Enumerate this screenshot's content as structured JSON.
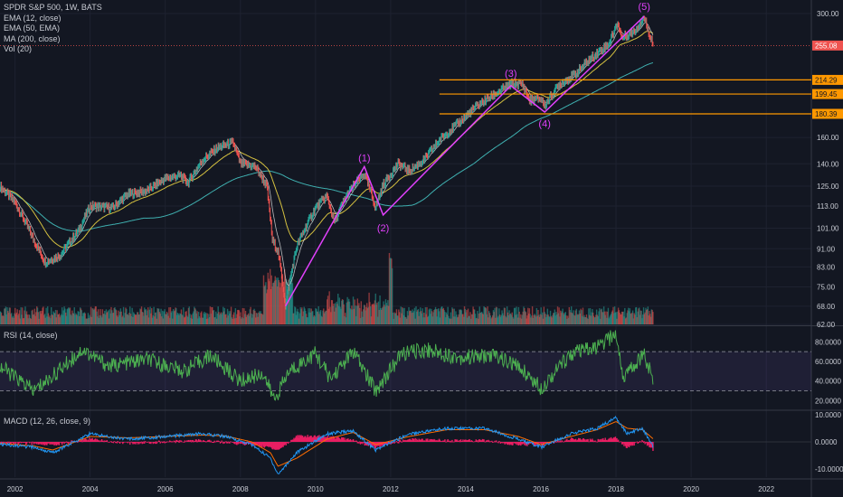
{
  "legend": {
    "title": "SPDR S&P 500, 1W, BATS",
    "ema12": "EMA (12, close)",
    "ema50": "EMA (50, EMA)",
    "ma200": "MA (200, close)",
    "vol": "Vol (20)"
  },
  "rsi_label": "RSI (14, close)",
  "macd_label": "MACD (12, 26, close, 9)",
  "colors": {
    "background": "#131722",
    "grid": "#1e2230",
    "candle_up": "#26a69a",
    "candle_down": "#ef5350",
    "ema12": "#e3e3e3",
    "ema50": "#d4c040",
    "ma200": "#3fb0b0",
    "wave": "#e040fb",
    "rsi": "#4caf50",
    "level": "#ff9800",
    "price_tag": "#ef5350",
    "macd_line": "#2196f3",
    "signal_line": "#ff6d00",
    "histogram": "#e91e63"
  },
  "chart_data": {
    "type": "line",
    "title": "SPDR S&P 500, 1W, BATS",
    "price_axis_ticks": [
      "300.00",
      "68.00",
      "75.00",
      "83.00",
      "91.00",
      "101.00",
      "113.00",
      "125.00",
      "140.00",
      "160.00",
      "62.00"
    ],
    "price_scale": "log",
    "ylim": [
      62,
      300
    ],
    "x_ticks": [
      "2002",
      "2004",
      "2006",
      "2008",
      "2010",
      "2012",
      "2014",
      "2016",
      "2018",
      "2020",
      "2022"
    ],
    "xlim": [
      2001.6,
      2023.2
    ],
    "series": [
      {
        "name": "SPDR S&P 500",
        "x": [
          2001.6,
          2002.0,
          2002.5,
          2002.8,
          2003.2,
          2003.7,
          2004.0,
          2004.6,
          2005.0,
          2005.5,
          2006.0,
          2006.4,
          2006.6,
          2007.0,
          2007.4,
          2007.8,
          2008.0,
          2008.4,
          2008.7,
          2008.85,
          2009.0,
          2009.2,
          2009.5,
          2010.0,
          2010.3,
          2010.5,
          2010.8,
          2011.0,
          2011.3,
          2011.6,
          2011.8,
          2012.2,
          2012.5,
          2012.9,
          2013.3,
          2013.8,
          2014.3,
          2014.8,
          2015.2,
          2015.5,
          2015.7,
          2016.0,
          2016.1,
          2016.5,
          2016.9,
          2017.3,
          2017.8,
          2018.05,
          2018.15,
          2018.5,
          2018.75,
          2018.85,
          2019.0
        ],
        "values": [
          125,
          115,
          95,
          85,
          88,
          100,
          113,
          112,
          120,
          122,
          130,
          132,
          127,
          143,
          152,
          156,
          140,
          138,
          125,
          95,
          90,
          68,
          92,
          112,
          119,
          104,
          118,
          125,
          133,
          112,
          126,
          140,
          135,
          143,
          158,
          172,
          188,
          200,
          210,
          210,
          193,
          195,
          188,
          210,
          220,
          238,
          257,
          286,
          265,
          275,
          294,
          276,
          255
        ]
      }
    ],
    "price_tags": [
      {
        "label": "255.08",
        "value": 255.08
      },
      {
        "label": "214.29",
        "value": 214.29
      },
      {
        "label": "199.45",
        "value": 199.45
      },
      {
        "label": "180.39",
        "value": 180.39
      }
    ],
    "level_lines": [
      214.29,
      199.45,
      180.39
    ],
    "wave_labels": [
      {
        "text": "(1)",
        "x": 2011.3,
        "y": 138
      },
      {
        "text": "(2)",
        "x": 2011.8,
        "y": 106
      },
      {
        "text": "(3)",
        "x": 2015.2,
        "y": 212
      },
      {
        "text": "(4)",
        "x": 2016.1,
        "y": 180
      },
      {
        "text": "(5)",
        "x": 2018.75,
        "y": 297
      }
    ],
    "wave_path": {
      "x": [
        2009.2,
        2011.3,
        2011.8,
        2015.2,
        2016.1,
        2018.75
      ],
      "y": [
        68,
        138,
        108,
        208,
        182,
        296
      ]
    },
    "rsi": {
      "ticks": [
        "80.0000",
        "60.0000",
        "40.0000",
        "20.0000"
      ],
      "ylim": [
        12,
        95
      ],
      "upper_band": 70,
      "lower_band": 30,
      "x": [
        2001.6,
        2002.5,
        2003.0,
        2003.8,
        2004.5,
        2005.5,
        2006.5,
        2007.2,
        2008.0,
        2008.6,
        2008.9,
        2009.3,
        2010.0,
        2010.4,
        2011.0,
        2011.6,
        2012.3,
        2013.0,
        2013.8,
        2014.8,
        2015.5,
        2016.0,
        2016.8,
        2017.5,
        2018.0,
        2018.2,
        2018.6,
        2018.75,
        2019.0
      ],
      "values": [
        55,
        30,
        45,
        72,
        55,
        62,
        50,
        66,
        40,
        48,
        21,
        50,
        68,
        42,
        70,
        30,
        68,
        72,
        64,
        66,
        52,
        33,
        68,
        74,
        88,
        43,
        62,
        68,
        38
      ]
    },
    "macd": {
      "ticks": [
        "10.0000",
        "0.0000",
        "-10.0000"
      ],
      "ylim": [
        -13,
        11
      ],
      "x": [
        2001.6,
        2002.5,
        2003.0,
        2004.0,
        2005.0,
        2006.0,
        2007.0,
        2007.6,
        2008.3,
        2008.8,
        2009.0,
        2009.5,
        2010.3,
        2011.0,
        2011.6,
        2012.5,
        2013.5,
        2014.5,
        2015.4,
        2016.0,
        2016.8,
        2017.5,
        2018.0,
        2018.3,
        2018.7,
        2019.0
      ],
      "macd_values": [
        -1,
        -2,
        -4,
        3,
        1,
        2,
        3,
        2,
        -1,
        -6,
        -12,
        -4,
        3,
        4,
        -3,
        3,
        5,
        5,
        1,
        -2,
        3,
        5,
        9,
        3,
        5,
        -2
      ],
      "signal_values": [
        -0.5,
        -1.5,
        -3,
        2,
        1.5,
        2,
        2.5,
        2.2,
        0,
        -4,
        -9,
        -6,
        1,
        3.5,
        -1,
        2,
        4.5,
        4.5,
        2,
        -1,
        2,
        4.5,
        7.5,
        5,
        4.5,
        1
      ]
    }
  }
}
